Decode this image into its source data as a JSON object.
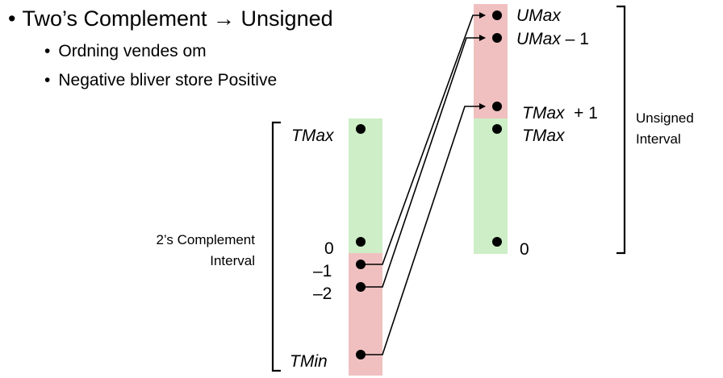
{
  "bullets": {
    "main": "Two’s Complement → Unsigned",
    "sub1": "Ordning vendes om",
    "sub2": "Negative bliver store Positive"
  },
  "left_axis": {
    "title_line1": "2’s Complement",
    "title_line2": "Interval",
    "tmax": "TMax",
    "zero": "0",
    "minus_one": "–1",
    "minus_two": "–2",
    "tmin": "TMin"
  },
  "right_axis": {
    "title_line1": "Unsigned",
    "title_line2": "Interval",
    "umax": "UMax",
    "umax_minus_1_name": "UMax",
    "umax_minus_1_suffix": " – 1",
    "tmax_plus_1_name": "TMax",
    "tmax_plus_1_suffix": "  + 1",
    "tmax": "TMax",
    "zero": "0"
  },
  "colors": {
    "positive_region": "#cdeec6",
    "negative_region": "#f0c0c0",
    "line": "#000000"
  }
}
